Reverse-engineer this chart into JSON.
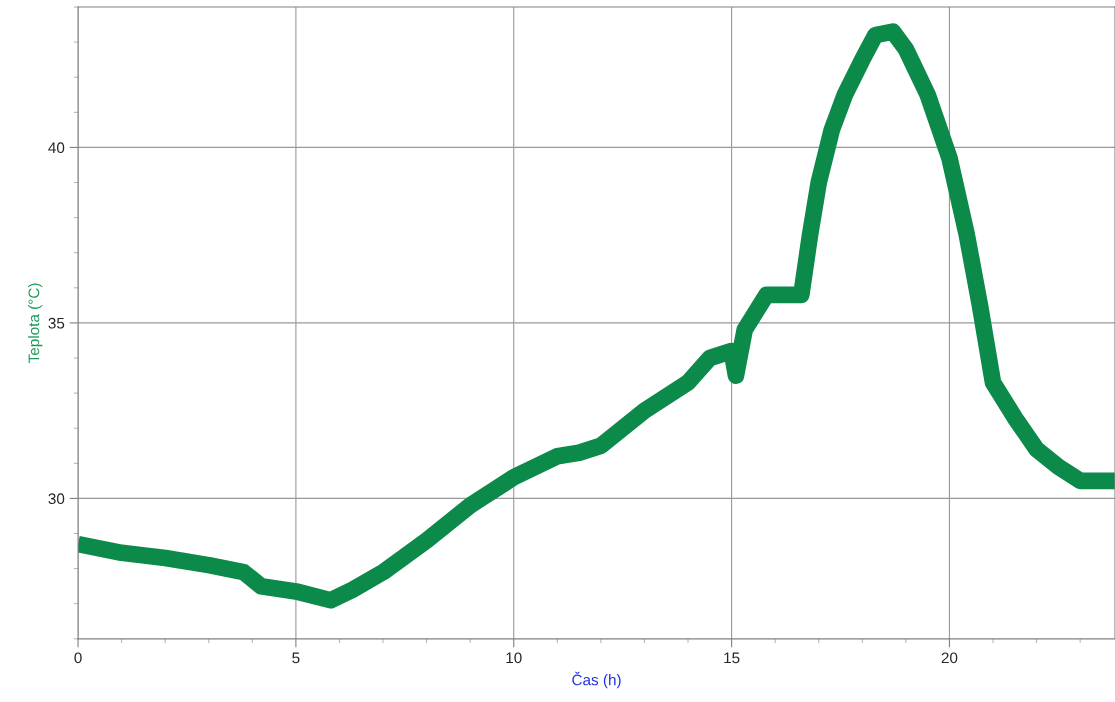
{
  "chart_data": {
    "type": "line",
    "xlabel": "Čas (h)",
    "ylabel": "Teplota (°C)",
    "x": [
      0,
      1,
      2,
      3,
      3.8,
      4.2,
      5,
      5.8,
      6.3,
      7,
      8,
      9,
      10,
      11,
      11.5,
      12,
      13,
      14,
      14.5,
      15,
      15.1,
      15.3,
      15.8,
      16,
      16.6,
      16.8,
      17,
      17.3,
      17.6,
      18,
      18.3,
      18.7,
      19,
      19.5,
      20,
      20.4,
      20.7,
      21,
      21.5,
      22,
      22.5,
      23,
      23.8
    ],
    "series": [
      {
        "color": "#0b8a4a",
        "values": [
          28.7,
          28.45,
          28.3,
          28.1,
          27.9,
          27.5,
          27.35,
          27.1,
          27.4,
          27.9,
          28.8,
          29.8,
          30.6,
          31.2,
          31.3,
          31.5,
          32.5,
          33.3,
          34.0,
          34.2,
          33.5,
          34.8,
          35.8,
          35.8,
          35.8,
          37.5,
          39.0,
          40.5,
          41.5,
          42.5,
          43.2,
          43.3,
          42.8,
          41.5,
          39.7,
          37.5,
          35.5,
          33.3,
          32.3,
          31.4,
          30.9,
          30.5,
          30.5
        ]
      }
    ],
    "xlim": [
      0,
      23.8
    ],
    "ylim": [
      26,
      44
    ],
    "xticks": [
      0,
      5,
      10,
      15,
      20
    ],
    "yticks": [
      30,
      35,
      40
    ],
    "grid": true,
    "marker": "none",
    "line_style": "solid"
  }
}
